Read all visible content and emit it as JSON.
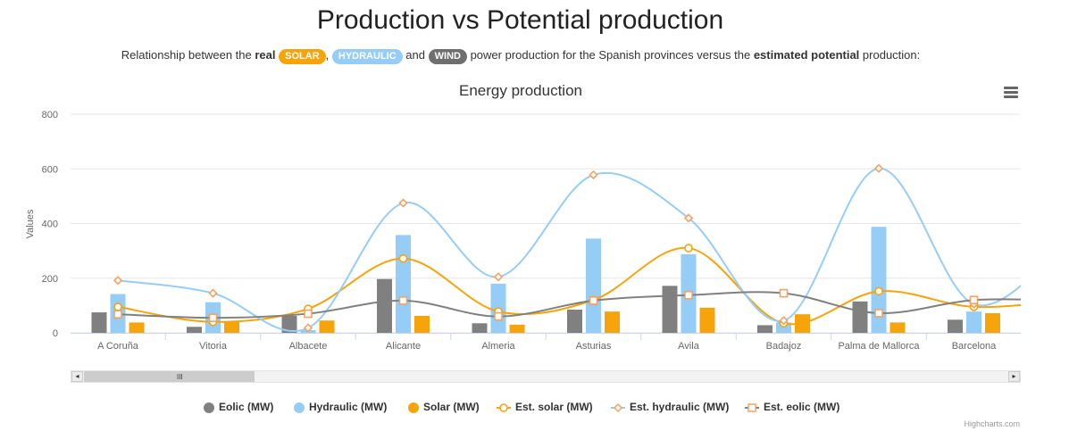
{
  "page": {
    "title": "Production vs Potential production",
    "subtitle_prefix": "Relationship between the",
    "subtitle_real": "real",
    "badge_solar": "SOLAR",
    "badge_hydraulic": "HYDRAULIC",
    "badge_wind": "WIND",
    "subtitle_and": "and",
    "subtitle_mid": "power production for the Spanish provinces versus the",
    "subtitle_estimated": "estimated potential",
    "subtitle_suffix": "production:",
    "comma": ","
  },
  "credits": "Highcharts.com",
  "colors": {
    "eolic": "#808080",
    "hydraulic": "#96cdf7",
    "solar": "#f7a40a",
    "est_solar": "#f7a40a",
    "est_hydraulic": "#f4a261",
    "est_eolic": "#f4a261"
  },
  "chart_data": {
    "type": "bar",
    "title": "Energy production",
    "ylabel": "Values",
    "ylim": [
      0,
      800
    ],
    "yticks": [
      0,
      200,
      400,
      600,
      800
    ],
    "grid": true,
    "legend_position": "bottom",
    "categories": [
      "A Coruña",
      "Vitoria",
      "Albacete",
      "Alicante",
      "Almeria",
      "Asturias",
      "Avila",
      "Badajoz",
      "Palma de Mallorca",
      "Barcelona"
    ],
    "series": [
      {
        "name": "Eolic (MW)",
        "type": "bar",
        "values": [
          75,
          22,
          62,
          197,
          35,
          85,
          172,
          28,
          115,
          48
        ]
      },
      {
        "name": "Hydraulic (MW)",
        "type": "bar",
        "values": [
          142,
          112,
          10,
          358,
          180,
          345,
          288,
          38,
          388,
          78
        ]
      },
      {
        "name": "Solar (MW)",
        "type": "bar",
        "values": [
          38,
          42,
          45,
          62,
          30,
          78,
          92,
          68,
          38,
          72
        ]
      },
      {
        "name": "Est. solar (MW)",
        "type": "line",
        "values": [
          95,
          40,
          88,
          272,
          78,
          120,
          310,
          35,
          152,
          95
        ]
      },
      {
        "name": "Est. hydraulic (MW)",
        "type": "line",
        "values": [
          192,
          145,
          18,
          475,
          205,
          578,
          420,
          45,
          602,
          105
        ]
      },
      {
        "name": "Est. eolic (MW)",
        "type": "line",
        "values": [
          68,
          55,
          70,
          118,
          60,
          118,
          138,
          145,
          72,
          120
        ]
      }
    ]
  }
}
